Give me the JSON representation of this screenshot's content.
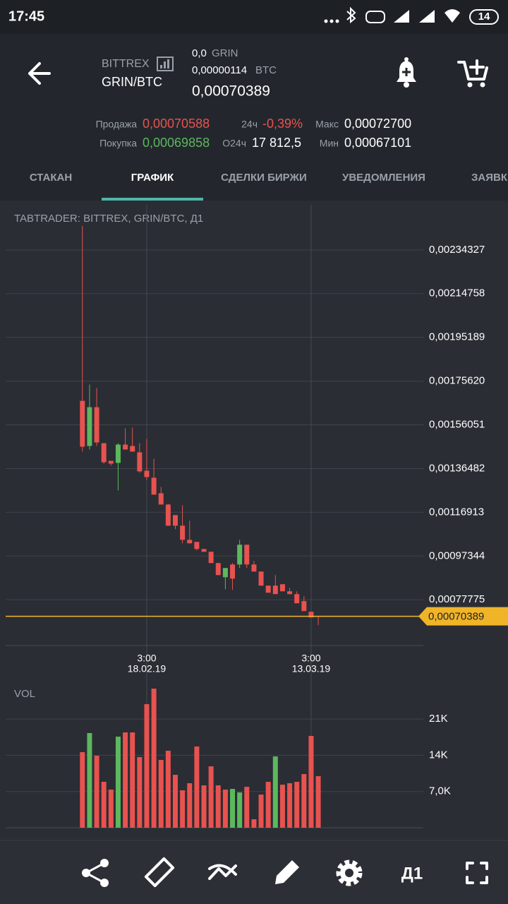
{
  "status_bar": {
    "time": "17:45",
    "battery": "14"
  },
  "header": {
    "exchange": "BITTREX",
    "pair": "GRIN/BTC",
    "balance": "0,0",
    "balance_unit": "GRIN",
    "unit_price": "0,00000114",
    "unit_price_currency": "BTC",
    "last_price": "0,00070389"
  },
  "stats": {
    "sell_label": "Продажа",
    "sell": "0,00070588",
    "buy_label": "Покупка",
    "buy": "0,00069858",
    "change_label": "24ч",
    "change": "-0,39%",
    "volume_label": "О24ч",
    "volume": "17 812,5",
    "high_label": "Макс",
    "high": "0,00072700",
    "low_label": "Мин",
    "low": "0,00067101"
  },
  "tabs": [
    "СТАКАН",
    "ГРАФИК",
    "СДЕЛКИ БИРЖИ",
    "УВЕДОМЛЕНИЯ",
    "ЗАЯВК"
  ],
  "toolbar": {
    "timeframe": "Д1"
  },
  "chart_data": [
    {
      "type": "candlestick",
      "title": "TABTRADER: BITTREX, GRIN/BTC, Д1",
      "categories": [
        null,
        null,
        null,
        null,
        null,
        null,
        null,
        null,
        null,
        "18.02.19",
        null,
        null,
        null,
        null,
        null,
        null,
        null,
        null,
        null,
        null,
        null,
        null,
        null,
        null,
        null,
        null,
        null,
        null,
        null,
        null,
        null,
        null,
        "13.03.19",
        null
      ],
      "tick_time": "3:00",
      "open": [
        0.0016678,
        0.0014658,
        0.0016394,
        0.0014784,
        0.0013995,
        0.0013901,
        0.0014721,
        0.0014658,
        0.0014374,
        0.0013553,
        0.0013238,
        0.0012543,
        0.0012038,
        0.0011565,
        0.0011092,
        0.001046,
        0.0010366,
        0.001005,
        0.0009924,
        0.0009419,
        0.0008787,
        0.0009356,
        0.0009356,
        0.0010239,
        0.0009356,
        0.000904,
        0.0008409,
        0.0008409,
        0.0008472,
        0.0008156,
        0.000803,
        0.0007714,
        0.0007241,
        0.0007052
      ],
      "high": [
        0.0024506,
        0.0017404,
        0.0017246,
        0.0014784,
        0.0013995,
        0.0014784,
        0.0015447,
        0.0015479,
        0.0014784,
        0.0014974,
        0.001409,
        0.0012828,
        0.001207,
        0.0011565,
        0.0012007,
        0.0011313,
        0.0010366,
        0.001005,
        0.0009924,
        0.0009419,
        0.0009198,
        0.0009419,
        0.001046,
        0.0010239,
        0.0009513,
        0.000904,
        0.0008409,
        0.0008882,
        0.0008472,
        0.0008314,
        0.0008156,
        0.0007935,
        0.0007241,
        0.0007052
      ],
      "low": [
        0.0014406,
        0.00145,
        0.0014658,
        0.0013869,
        0.0013774,
        0.001267,
        0.00145,
        0.0014406,
        0.0013459,
        0.0013143,
        0.001248,
        0.0012038,
        0.0011092,
        0.0010934,
        0.0010302,
        0.0010302,
        0.0009987,
        0.0009924,
        0.0009419,
        0.0008882,
        0.0008251,
        0.0008219,
        0.0009198,
        0.0009198,
        0.000904,
        0.0008409,
        0.0008093,
        0.000803,
        0.0008156,
        0.000803,
        0.000762,
        0.0007272,
        0.0006988,
        0.0006641
      ],
      "close": [
        0.0014627,
        0.0016394,
        0.0014816,
        0.0013932,
        0.0013869,
        0.0014721,
        0.00145,
        0.0014406,
        0.0013522,
        0.0013269,
        0.001248,
        0.0012038,
        0.0011092,
        0.0011092,
        0.001046,
        0.0010302,
        0.001005,
        0.0009924,
        0.0009419,
        0.0008882,
        0.0009198,
        0.0008724,
        0.0010239,
        0.0009356,
        0.000904,
        0.0008409,
        0.0008093,
        0.000803,
        0.0008156,
        0.000803,
        0.000762,
        0.0007272,
        0.0006988,
        0.00070389
      ],
      "up_color": "#5cb85c",
      "down_color": "#e8524f",
      "ylim": [
        0.000573,
        0.002545
      ],
      "yticks": [
        {
          "value": 0.00234327,
          "label": "0,00234327"
        },
        {
          "value": 0.00214758,
          "label": "0,00214758"
        },
        {
          "value": 0.00195189,
          "label": "0,00195189"
        },
        {
          "value": 0.0017562,
          "label": "0,00175620"
        },
        {
          "value": 0.00156051,
          "label": "0,00156051"
        },
        {
          "value": 0.00136482,
          "label": "0,00136482"
        },
        {
          "value": 0.00116913,
          "label": "0,00116913"
        },
        {
          "value": 0.00097344,
          "label": "0,00097344"
        },
        {
          "value": 0.00077775,
          "label": "0,00077775"
        }
      ],
      "current_price": {
        "value": 0.00070389,
        "label": "0,00070389"
      },
      "current_price_color": "#f0b429",
      "grid": true
    },
    {
      "type": "bar",
      "title": "VOL",
      "values": [
        14600,
        18290,
        13920,
        8870,
        7370,
        17600,
        18420,
        18420,
        13650,
        23880,
        26880,
        13100,
        14870,
        10230,
        7230,
        8600,
        15690,
        8190,
        11870,
        8190,
        7370,
        7500,
        6820,
        7910,
        1640,
        6410,
        8870,
        13780,
        8320,
        8600,
        8870,
        10370,
        17740,
        9960
      ],
      "colors": [
        "#e8524f",
        "#5cb85c",
        "#e8524f",
        "#e8524f",
        "#e8524f",
        "#5cb85c",
        "#e8524f",
        "#e8524f",
        "#e8524f",
        "#e8524f",
        "#e8524f",
        "#e8524f",
        "#e8524f",
        "#e8524f",
        "#e8524f",
        "#e8524f",
        "#e8524f",
        "#e8524f",
        "#e8524f",
        "#e8524f",
        "#e8524f",
        "#5cb85c",
        "#5cb85c",
        "#e8524f",
        "#e8524f",
        "#e8524f",
        "#e8524f",
        "#5cb85c",
        "#e8524f",
        "#e8524f",
        "#e8524f",
        "#e8524f",
        "#e8524f",
        "#e8524f"
      ],
      "ylim": [
        0,
        28250
      ],
      "yticks": [
        {
          "value": 7000,
          "label": "7,0K"
        },
        {
          "value": 14000,
          "label": "14K"
        },
        {
          "value": 21000,
          "label": "21K"
        }
      ],
      "grid": true
    }
  ]
}
